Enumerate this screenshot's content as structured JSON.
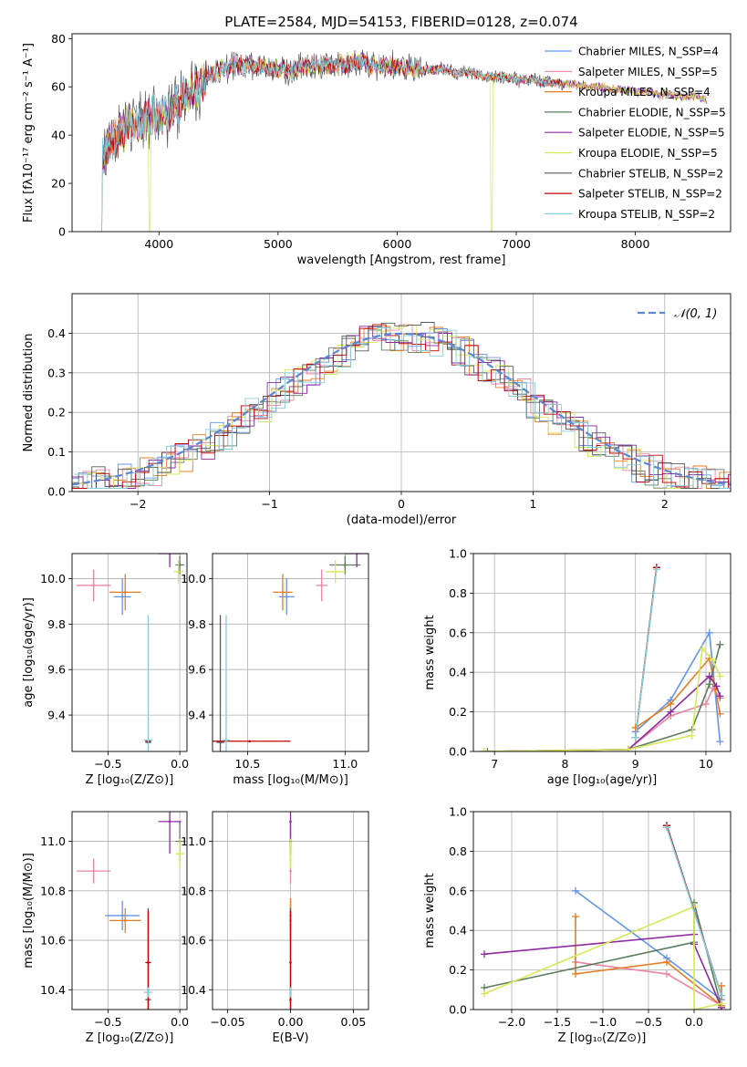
{
  "figure": {
    "title": "PLATE=2584, MJD=54153, FIBERID=0128, z=0.074"
  },
  "chart_data": [
    {
      "id": "spectrum",
      "type": "line",
      "title": "PLATE=2584, MJD=54153, FIBERID=0128, z=0.074",
      "xlabel": "wavelength [Angstrom, rest frame]",
      "ylabel": "Flux [fλ10⁻¹⁷ erg cm⁻² s⁻¹ A⁻¹]",
      "xlim": [
        3270,
        8800
      ],
      "ylim": [
        0,
        82
      ],
      "xticks": [
        4000,
        5000,
        6000,
        7000,
        8000
      ],
      "yticks": [
        0,
        20,
        40,
        60,
        80
      ],
      "grid": false,
      "legend": "top-right",
      "legend_entries": [
        "Chabrier MILES, N_SSP=4",
        "Salpeter MILES, N_SSP=5",
        "Kroupa MILES, N_SSP=4",
        "Chabrier ELODIE, N_SSP=5",
        "Salpeter ELODIE, N_SSP=5",
        "Kroupa ELODIE, N_SSP=5",
        "Chabrier STELIB, N_SSP=2",
        "Salpeter STELIB, N_SSP=2",
        "Kroupa STELIB, N_SSP=2"
      ],
      "series_colors": [
        "#6495ed",
        "#ea86a6",
        "#e87c1e",
        "#5d7f5d",
        "#8e2aa0",
        "#d7e85a",
        "#5a5a5a",
        "#c00000",
        "#86cddb"
      ],
      "continuum": {
        "x": [
          3520,
          3600,
          3700,
          3800,
          3900,
          4000,
          4100,
          4200,
          4300,
          4400,
          4500,
          4600,
          4700,
          4800,
          4900,
          5000,
          5100,
          5200,
          5300,
          5400,
          5500,
          5600,
          5700,
          5800,
          5900,
          6000,
          6100,
          6200,
          6300,
          6400,
          6500,
          6600,
          6700,
          6800,
          6900,
          7000,
          7100,
          7200,
          7300,
          7400,
          7500,
          7600,
          7700,
          7800,
          7900,
          8000,
          8100,
          8200,
          8300,
          8400,
          8500,
          8600,
          8700
        ],
        "y": [
          33,
          37,
          42,
          45,
          47,
          48,
          50,
          55,
          60,
          64,
          67,
          68,
          69,
          69,
          68,
          67,
          67,
          68,
          69,
          69,
          69,
          70,
          70,
          69,
          69,
          68,
          68,
          67,
          67,
          67,
          66,
          66,
          65,
          64,
          64,
          63,
          63,
          62,
          62,
          61,
          61,
          60,
          60,
          59,
          59,
          58,
          58,
          57,
          57,
          56,
          56,
          55,
          55
        ]
      }
    },
    {
      "id": "residuals",
      "type": "histogram",
      "xlabel": "(data-model)/error",
      "ylabel": "Normed distribution",
      "xlim": [
        -2.5,
        2.5
      ],
      "ylim": [
        0,
        0.5
      ],
      "xticks": [
        -2,
        -1,
        0,
        1,
        2
      ],
      "yticks": [
        0.0,
        0.1,
        0.2,
        0.3,
        0.4
      ],
      "grid": true,
      "legend": "top-right",
      "legend_entries": [
        "𝒩(0, 1)"
      ],
      "reference_curve": {
        "name": "𝒩(0, 1)",
        "mean": 0,
        "sigma": 1,
        "color": "#5b87d6"
      },
      "bin_width": 0.1,
      "series_colors": [
        "#6495ed",
        "#ea86a6",
        "#e87c1e",
        "#5d7f5d",
        "#8e2aa0",
        "#d7e85a",
        "#5a5a5a",
        "#c00000",
        "#86cddb"
      ]
    },
    {
      "id": "age_vs_Z",
      "type": "scatter",
      "xlabel": "Z [log₁₀(Z/Z⊙)]",
      "ylabel": "age  [log₁₀(age/yr)]",
      "xlim": [
        -0.75,
        0.05
      ],
      "ylim": [
        9.24,
        10.11
      ],
      "xticks": [
        -0.5,
        0.0
      ],
      "xtick_labels": [
        "−0.5",
        "0.0"
      ],
      "yticks": [
        9.4,
        9.6,
        9.8,
        10.0
      ],
      "grid": true,
      "points": [
        {
          "x": -0.4,
          "y": 9.92,
          "xerr": 0.06,
          "yerr": 0.08,
          "color": "#6495ed"
        },
        {
          "x": -0.6,
          "y": 9.97,
          "xerr": 0.12,
          "yerr": 0.07,
          "color": "#ea86a6"
        },
        {
          "x": -0.38,
          "y": 9.94,
          "xerr": 0.11,
          "yerr": 0.08,
          "color": "#e87c1e"
        },
        {
          "x": 0.0,
          "y": 10.06,
          "xerr": 0.03,
          "yerr": 0.04,
          "color": "#5d7f5d"
        },
        {
          "x": -0.07,
          "y": 10.11,
          "xerr": 0.08,
          "yerr": 0.06,
          "color": "#8e2aa0"
        },
        {
          "x": -0.01,
          "y": 10.03,
          "xerr": 0.03,
          "yerr": 0.05,
          "color": "#d7e85a"
        },
        {
          "x": -0.22,
          "y": 9.28,
          "xerr": 0.02,
          "yerr": 0.0,
          "color": "#5a5a5a"
        },
        {
          "x": -0.22,
          "y": 9.285,
          "xerr": 0.02,
          "yerr": 0.0,
          "color": "#c00000"
        },
        {
          "x": -0.22,
          "y": 9.29,
          "xerr": 0.03,
          "yerr": 0.55,
          "color": "#86cddb"
        }
      ]
    },
    {
      "id": "age_vs_mass",
      "type": "scatter",
      "xlabel": "mass [log₁₀(M/M⊙)]",
      "ylabel": "",
      "xlim": [
        10.32,
        11.12
      ],
      "ylim": [
        9.24,
        10.11
      ],
      "xticks": [
        10.5,
        11.0
      ],
      "xtick_labels": [
        "10.5",
        "11.0"
      ],
      "yticks": [
        9.4,
        9.6,
        9.8,
        10.0
      ],
      "grid": true,
      "points": [
        {
          "x": 10.7,
          "y": 9.92,
          "xerr": 0.04,
          "yerr": 0.08,
          "color": "#6495ed"
        },
        {
          "x": 10.88,
          "y": 9.97,
          "xerr": 0.03,
          "yerr": 0.07,
          "color": "#ea86a6"
        },
        {
          "x": 10.68,
          "y": 9.94,
          "xerr": 0.05,
          "yerr": 0.08,
          "color": "#e87c1e"
        },
        {
          "x": 11.0,
          "y": 10.06,
          "xerr": 0.08,
          "yerr": 0.04,
          "color": "#5d7f5d"
        },
        {
          "x": 11.06,
          "y": 10.11,
          "xerr": 0.06,
          "yerr": 0.06,
          "color": "#8e2aa0"
        },
        {
          "x": 10.95,
          "y": 10.03,
          "xerr": 0.05,
          "yerr": 0.05,
          "color": "#d7e85a"
        },
        {
          "x": 10.36,
          "y": 9.28,
          "xerr": 0.02,
          "yerr": 0.56,
          "color": "#5a5a5a"
        },
        {
          "x": 10.51,
          "y": 9.285,
          "xerr": 0.21,
          "yerr": 0.0,
          "color": "#c00000"
        },
        {
          "x": 10.39,
          "y": 9.29,
          "xerr": 0.02,
          "yerr": 0.55,
          "color": "#86cddb"
        }
      ]
    },
    {
      "id": "weight_vs_age",
      "type": "line",
      "xlabel": "age  [log₁₀(age/yr)]",
      "ylabel": "mass weight",
      "xlim": [
        6.7,
        10.35
      ],
      "ylim": [
        0,
        1.0
      ],
      "xticks": [
        7,
        8,
        9,
        10
      ],
      "yticks": [
        0.0,
        0.2,
        0.4,
        0.6,
        0.8,
        1.0
      ],
      "grid": true,
      "series": [
        {
          "name": "Chabrier MILES",
          "color": "#6495ed",
          "x": [
            9.0,
            9.5,
            10.05,
            10.2
          ],
          "y": [
            0.1,
            0.26,
            0.6,
            0.05
          ]
        },
        {
          "name": "Salpeter MILES",
          "color": "#ea86a6",
          "x": [
            8.9,
            9.5,
            10.0,
            10.1,
            10.2
          ],
          "y": [
            0.01,
            0.18,
            0.24,
            0.32,
            0.27
          ]
        },
        {
          "name": "Kroupa MILES",
          "color": "#e87c1e",
          "x": [
            9.0,
            9.5,
            10.05,
            10.2
          ],
          "y": [
            0.12,
            0.24,
            0.47,
            0.19
          ]
        },
        {
          "name": "Chabrier ELODIE",
          "color": "#5d7f5d",
          "x": [
            6.9,
            8.9,
            9.8,
            10.05,
            10.2
          ],
          "y": [
            0.0,
            0.01,
            0.11,
            0.34,
            0.54
          ]
        },
        {
          "name": "Salpeter ELODIE",
          "color": "#8e2aa0",
          "x": [
            6.85,
            8.9,
            9.5,
            10.05,
            10.15,
            10.2
          ],
          "y": [
            0.0,
            0.01,
            0.2,
            0.38,
            0.33,
            0.28
          ]
        },
        {
          "name": "Kroupa ELODIE",
          "color": "#d7e85a",
          "x": [
            6.85,
            8.9,
            9.8,
            9.95,
            10.1,
            10.2
          ],
          "y": [
            0.0,
            0.01,
            0.08,
            0.52,
            0.46,
            0.38
          ]
        },
        {
          "name": "Chabrier STELIB",
          "color": "#5a5a5a",
          "x": [
            9.0,
            9.3
          ],
          "y": [
            0.07,
            0.93
          ]
        },
        {
          "name": "Salpeter STELIB",
          "color": "#c00000",
          "x": [
            9.0,
            9.3
          ],
          "y": [
            0.07,
            0.93
          ]
        },
        {
          "name": "Kroupa STELIB",
          "color": "#86cddb",
          "x": [
            9.0,
            9.3
          ],
          "y": [
            0.07,
            0.92
          ]
        }
      ]
    },
    {
      "id": "mass_vs_Z",
      "type": "scatter",
      "xlabel": "Z [log₁₀(Z/Z⊙)]",
      "ylabel": "mass [log₁₀(M/M⊙)]",
      "xlim": [
        -0.75,
        0.05
      ],
      "ylim": [
        10.32,
        11.12
      ],
      "xticks": [
        -0.5,
        0.0
      ],
      "xtick_labels": [
        "−0.5",
        "0.0"
      ],
      "yticks": [
        10.4,
        10.6,
        10.8,
        11.0
      ],
      "grid": true,
      "points": [
        {
          "x": -0.4,
          "y": 10.7,
          "xerr": 0.12,
          "yerr": 0.06,
          "color": "#6495ed"
        },
        {
          "x": -0.6,
          "y": 10.88,
          "xerr": 0.12,
          "yerr": 0.05,
          "color": "#ea86a6"
        },
        {
          "x": -0.38,
          "y": 10.68,
          "xerr": 0.11,
          "yerr": 0.05,
          "color": "#e87c1e"
        },
        {
          "x": 0.0,
          "y": 11.0,
          "xerr": 0.03,
          "yerr": 0.08,
          "color": "#5d7f5d"
        },
        {
          "x": -0.07,
          "y": 11.08,
          "xerr": 0.08,
          "yerr": 0.13,
          "color": "#8e2aa0"
        },
        {
          "x": 0.0,
          "y": 10.95,
          "xerr": 0.03,
          "yerr": 0.06,
          "color": "#d7e85a"
        },
        {
          "x": -0.22,
          "y": 10.36,
          "xerr": 0.02,
          "yerr": 0.37,
          "color": "#5a5a5a"
        },
        {
          "x": -0.22,
          "y": 10.51,
          "xerr": 0.02,
          "yerr": 0.21,
          "color": "#c00000"
        },
        {
          "x": -0.22,
          "y": 10.39,
          "xerr": 0.03,
          "yerr": 0.02,
          "color": "#86cddb"
        }
      ]
    },
    {
      "id": "mass_vs_ebv",
      "type": "scatter",
      "xlabel": "E(B-V)",
      "ylabel": "",
      "xlim": [
        -0.062,
        0.062
      ],
      "ylim": [
        10.32,
        11.12
      ],
      "xticks": [
        -0.05,
        0.0,
        0.05
      ],
      "xtick_labels": [
        "−0.05",
        "0.00",
        "0.05"
      ],
      "yticks": [
        10.4,
        10.6,
        10.8,
        11.0
      ],
      "grid": true,
      "points": [
        {
          "x": 0.0,
          "y": 10.7,
          "xerr": 0.0,
          "yerr": 0.06,
          "color": "#6495ed"
        },
        {
          "x": 0.0,
          "y": 10.88,
          "xerr": 0.0,
          "yerr": 0.05,
          "color": "#ea86a6"
        },
        {
          "x": 0.0,
          "y": 10.68,
          "xerr": 0.0,
          "yerr": 0.09,
          "color": "#e87c1e"
        },
        {
          "x": 0.0,
          "y": 11.0,
          "xerr": 0.0,
          "yerr": 0.08,
          "color": "#5d7f5d"
        },
        {
          "x": 0.0,
          "y": 11.08,
          "xerr": 0.0,
          "yerr": 0.13,
          "color": "#8e2aa0"
        },
        {
          "x": 0.0,
          "y": 10.95,
          "xerr": 0.0,
          "yerr": 0.06,
          "color": "#d7e85a"
        },
        {
          "x": 0.0,
          "y": 10.36,
          "xerr": 0.0,
          "yerr": 0.37,
          "color": "#5a5a5a"
        },
        {
          "x": 0.0,
          "y": 10.51,
          "xerr": 0.0,
          "yerr": 0.21,
          "color": "#c00000"
        },
        {
          "x": 0.0,
          "y": 10.39,
          "xerr": 0.0,
          "yerr": 0.02,
          "color": "#86cddb"
        }
      ]
    },
    {
      "id": "weight_vs_Z",
      "type": "line",
      "xlabel": "Z [log₁₀(Z/Z⊙)]",
      "ylabel": "mass weight",
      "xlim": [
        -2.42,
        0.4
      ],
      "ylim": [
        0,
        1.0
      ],
      "xticks": [
        -2.0,
        -1.5,
        -1.0,
        -0.5,
        0.0
      ],
      "xtick_labels": [
        "−2.0",
        "−1.5",
        "−1.0",
        "−0.5",
        "0.0"
      ],
      "yticks": [
        0.0,
        0.2,
        0.4,
        0.6,
        0.8,
        1.0
      ],
      "grid": true,
      "series": [
        {
          "name": "Chabrier MILES",
          "color": "#6495ed",
          "x": [
            -1.3,
            -0.3,
            0.3
          ],
          "y": [
            0.6,
            0.26,
            0.05
          ]
        },
        {
          "name": "Salpeter MILES",
          "color": "#ea86a6",
          "x": [
            -1.3,
            -0.3,
            0.3
          ],
          "y": [
            0.24,
            0.18,
            0.02
          ]
        },
        {
          "name": "Kroupa MILES",
          "color": "#e87c1e",
          "x": [
            -1.3,
            -1.3,
            -0.3,
            0.3,
            0.3
          ],
          "y": [
            0.47,
            0.18,
            0.24,
            0.02,
            0.12
          ]
        },
        {
          "name": "Chabrier ELODIE",
          "color": "#5d7f5d",
          "x": [
            -2.3,
            0.0,
            0.0,
            0.3
          ],
          "y": [
            0.11,
            0.34,
            0.54,
            0.01
          ]
        },
        {
          "name": "Salpeter ELODIE",
          "color": "#8e2aa0",
          "x": [
            -2.3,
            0.0,
            0.0,
            0.3
          ],
          "y": [
            0.28,
            0.38,
            0.33,
            0.01
          ]
        },
        {
          "name": "Kroupa ELODIE",
          "color": "#d7e85a",
          "x": [
            -2.3,
            0.0,
            0.0,
            0.3
          ],
          "y": [
            0.08,
            0.52,
            0.0,
            0.03
          ]
        },
        {
          "name": "Chabrier STELIB",
          "color": "#5a5a5a",
          "x": [
            -0.3,
            0.3
          ],
          "y": [
            0.93,
            0.07
          ]
        },
        {
          "name": "Salpeter STELIB",
          "color": "#c00000",
          "x": [
            -0.3,
            0.3
          ],
          "y": [
            0.93,
            0.07
          ]
        },
        {
          "name": "Kroupa STELIB",
          "color": "#86cddb",
          "x": [
            -0.3,
            0.3
          ],
          "y": [
            0.92,
            0.07
          ]
        }
      ]
    }
  ]
}
